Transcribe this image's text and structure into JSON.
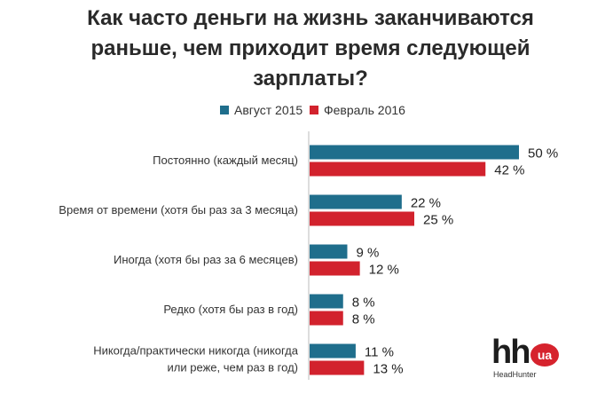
{
  "chart_data": {
    "type": "bar",
    "orientation": "horizontal",
    "title": "Как часто деньги на жизнь заканчиваются раньше, чем приходит время следующей зарплаты?",
    "categories": [
      "Постоянно (каждый месяц)",
      "Время от времени (хотя бы раз за 3 месяца)",
      "Иногда (хотя бы раз за 6 месяцев)",
      "Редко (хотя бы раз в год)",
      "Никогда/практически никогда (никогда или реже, чем раз в год)"
    ],
    "series": [
      {
        "name": "Август 2015",
        "values": [
          50,
          22,
          9,
          8,
          11
        ],
        "color": "#1f6e8c"
      },
      {
        "name": "Февраль 2016",
        "values": [
          42,
          25,
          12,
          8,
          13
        ],
        "color": "#d2222d"
      }
    ],
    "value_suffix": " %",
    "legend_position": "top",
    "grid": false
  },
  "logo": {
    "mark": "hh",
    "badge": "ua",
    "subtitle": "HeadHunter"
  }
}
